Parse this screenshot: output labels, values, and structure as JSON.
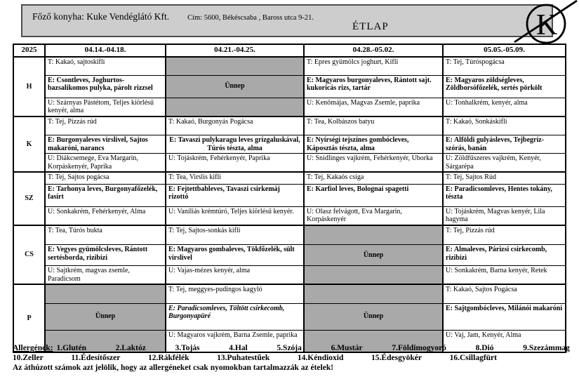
{
  "header": {
    "kitchen": "Főző konyha: Kuke Vendéglátó Kft.",
    "address": "Cím: 5600, Békéscsaba , Baross utca 9-21.",
    "title": "ÉTLAP",
    "logo_letter": "K"
  },
  "colors": {
    "header_bg": "#cdcdcd",
    "holiday_bg": "#a9a9a9",
    "border": "#000000"
  },
  "menu": {
    "year": "2025",
    "week_headers": [
      "04.14.-04.18.",
      "04.21.-04.25.",
      "04.28.-05.02.",
      "05.05.-05.09."
    ],
    "holiday_label": "Ünnep",
    "days": [
      {
        "label": "H",
        "cells": [
          {
            "type": "menu",
            "t": "T: Kakaó, sajtoskifli",
            "e": "E: Csontleves, Joghurtos-bazsalikomos pulyka, párolt rizzsel",
            "u": "U: Szárnyas Pástétom, Teljes kiörlésű kenyér, alma"
          },
          {
            "type": "holiday",
            "label": "Ünnep"
          },
          {
            "type": "menu",
            "t": "T: Epres gyümölcs joghurt, Kifli",
            "e": "E: Magyaros burgonyaleves, Rántott sajt. kukoricás rizs, tartár",
            "u": "U: Kenőmájas, Magvas Zsemle, paprika"
          },
          {
            "type": "menu",
            "t": "T: Tej, Túróspogácsa",
            "e": "E: Magyaros zöldségleves, Zöldborsófőzelék, sertés pörkölt",
            "u": "U: Tonhalkrém, kenyér, alma"
          }
        ]
      },
      {
        "label": "K",
        "cells": [
          {
            "type": "menu",
            "t": "T: Tej, Pizzás rúd",
            "e": "E: Burgonyaleves virslivel, Sajtos makaróni, narancs",
            "u": "U: Diákcsemege, Eva Margarin, Korpáskenyér, Paprika"
          },
          {
            "type": "menu",
            "t": "T: Kakaó, Burgonyás Pogácsa",
            "e": "E: Tavaszi pulykaragu leves grízgaluskával, Túrós tészta, alma",
            "e_align": "center",
            "u": "U: Tojáskrém, Fehérkenyér, Paprika"
          },
          {
            "type": "menu",
            "t": "T: Tea, Kolbászos batyu",
            "e": "E: Nyírségi tejszínes gombócleves, Káposztás tészta, alma",
            "u": "U: Snidlinges vajkrém, Fehérkenyér, Uborka"
          },
          {
            "type": "menu",
            "t": "T: Kakaó, Sonkáskifli",
            "e": "E: Alföldi gulyásleves, Tejbegríz-szórás, banán",
            "u": "U: Zöldfűszeres vajkrém, Kenyér, Sárgarépa"
          }
        ]
      },
      {
        "label": "SZ",
        "cells": [
          {
            "type": "menu",
            "t": "T: Tej, Sajtos pogácsa",
            "e": "E: Tarhonya leves, Burgonyafőzelék, fasírt",
            "u": "U: Sonkakrém, Fehérkenyér, Alma"
          },
          {
            "type": "menu",
            "t": "T: Tea, Virslis kifli",
            "e": "E: Fejtettbableves, Tavaszi csirkemáj rizottó",
            "u": "U: Vaníliás krémtúró, Teljes kiörlésű kenyér."
          },
          {
            "type": "menu",
            "t": "T: Tej, Kakaós csiga",
            "e": "E: Karfiol leves, Bolognai spagetti",
            "u": "U: Olasz felvágott, Eva Margarin, Korpáskenyér"
          },
          {
            "type": "menu",
            "t": "T: Tej, Sajtos Rúd",
            "e": "E: Paradicsomleves, Hentes tokány, tészta",
            "u": "U: Tojáskrém, Magvas kenyér, Lila hagyma"
          }
        ]
      },
      {
        "label": "CS",
        "cells": [
          {
            "type": "menu",
            "t": "T: Tea, Túrós bukta",
            "e": "E: Vegyes gyümölcsleves, Rántott sertésborda, rizibizi",
            "u": "U: Sajtkrém, magvas zsemle, Paradicsom"
          },
          {
            "type": "menu",
            "t": "T: Tej, Sajtos-sonkás kifli",
            "e": "E: Magyaros gombaleves, Tökfőzelék, sült virslivel",
            "u": "U: Vajas-mézes kenyér, alma"
          },
          {
            "type": "holiday",
            "label": "Ünnep"
          },
          {
            "type": "menu",
            "t": "T: Tej, Pizzás rúd",
            "e": "E: Almaleves, Párizsi csirkecomb, rizibizi",
            "u": "U: Sonkakrém, Barna kenyér, Retek"
          }
        ]
      },
      {
        "label": "P",
        "cells": [
          {
            "type": "holiday",
            "label": "Ünnep"
          },
          {
            "type": "menu",
            "t": "T: Tej, meggyes-pudingos kagyló",
            "e": "E: Paradicsomleves, Töltött csirkecomb, Burgonyapüré",
            "e_italic": true,
            "u": "U: Magyaros vajkrém, Barna Zsemle, paprika"
          },
          {
            "type": "holiday",
            "label": "Ünnep"
          },
          {
            "type": "menu",
            "t": "T: Kakaó, Sajtos Pogácsa",
            "e": "E: Sajtgombócleves, Milánói makaróni",
            "u": "U: Vaj, Jam, Kenyér, Alma"
          }
        ]
      }
    ]
  },
  "footer": {
    "allergens_label": "Allergének:",
    "allergens_line1": [
      "1.Glutén",
      "2.Laktóz",
      "3.Tojás",
      "4.Hal",
      "5.Szója",
      "6.Mustár",
      "7.Földimogyoró",
      "8.Dió",
      "9.Szezámmag"
    ],
    "allergens_line2": [
      "10.Zeller",
      "11.Édesítőszer",
      "12.Rákfélék",
      "13.Puhatestűek",
      "14.Kéndioxid",
      "15.Édesgyökér",
      "16.Csillagfürt"
    ],
    "note": "Az áthúzott számok azt jelölik, hogy az allergéneket csak nyomokban tartalmazzák az ételek!"
  }
}
